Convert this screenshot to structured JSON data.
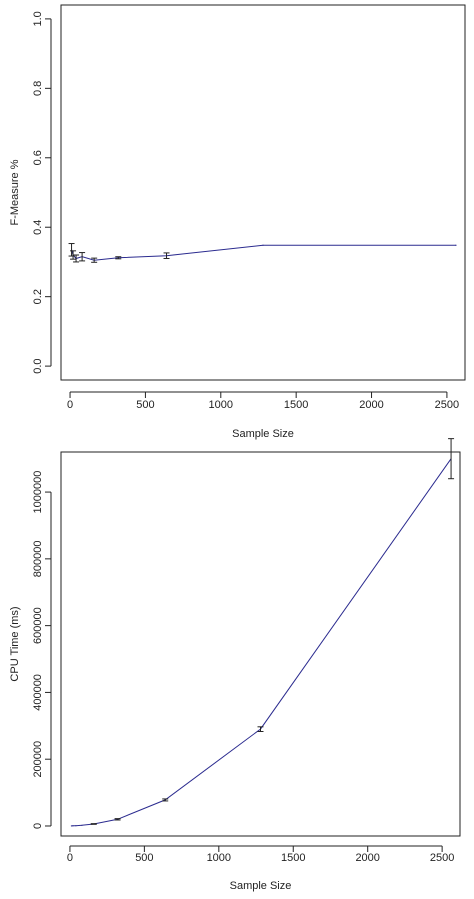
{
  "chart_data": [
    {
      "type": "line",
      "xlabel": "Sample Size",
      "ylabel": "F-Measure %",
      "xlim": [
        -60,
        2620
      ],
      "ylim": [
        -0.04,
        1.04
      ],
      "x_ticks": [
        0,
        500,
        1000,
        1500,
        2000,
        2500
      ],
      "y_ticks": [
        0.0,
        0.2,
        0.4,
        0.6,
        0.8,
        1.0
      ],
      "x_tick_labels": [
        "0",
        "500",
        "1000",
        "1500",
        "2000",
        "2500"
      ],
      "y_tick_labels": [
        "0.0",
        "0.2",
        "0.4",
        "0.6",
        "0.8",
        "1.0"
      ],
      "line_color": "#2b2b8f",
      "grid": false,
      "series": [
        {
          "x": [
            10,
            20,
            40,
            80,
            160,
            320,
            640,
            1280,
            2560
          ],
          "y": [
            0.335,
            0.32,
            0.31,
            0.315,
            0.305,
            0.312,
            0.318,
            0.348,
            0.348
          ],
          "err": [
            0.018,
            0.012,
            0.01,
            0.012,
            0.006,
            0.003,
            0.008,
            0.0,
            0.0
          ]
        }
      ]
    },
    {
      "type": "line",
      "xlabel": "Sample Size",
      "ylabel": "CPU Time (ms)",
      "xlim": [
        -60,
        2620
      ],
      "ylim": [
        -30000,
        1120000
      ],
      "x_ticks": [
        0,
        500,
        1000,
        1500,
        2000,
        2500
      ],
      "y_ticks": [
        0,
        200000,
        400000,
        600000,
        800000,
        1000000
      ],
      "x_tick_labels": [
        "0",
        "500",
        "1000",
        "1500",
        "2000",
        "2500"
      ],
      "y_tick_labels": [
        "0",
        "200000",
        "400000",
        "600000",
        "800000",
        "1000000"
      ],
      "line_color": "#2b2b8f",
      "grid": false,
      "series": [
        {
          "x": [
            10,
            20,
            40,
            80,
            160,
            320,
            640,
            1280,
            2560
          ],
          "y": [
            200,
            400,
            900,
            2000,
            6000,
            20000,
            78000,
            290000,
            1100000
          ],
          "err": [
            0,
            0,
            0,
            0,
            1000,
            2000,
            3000,
            7000,
            60000
          ]
        }
      ]
    }
  ]
}
